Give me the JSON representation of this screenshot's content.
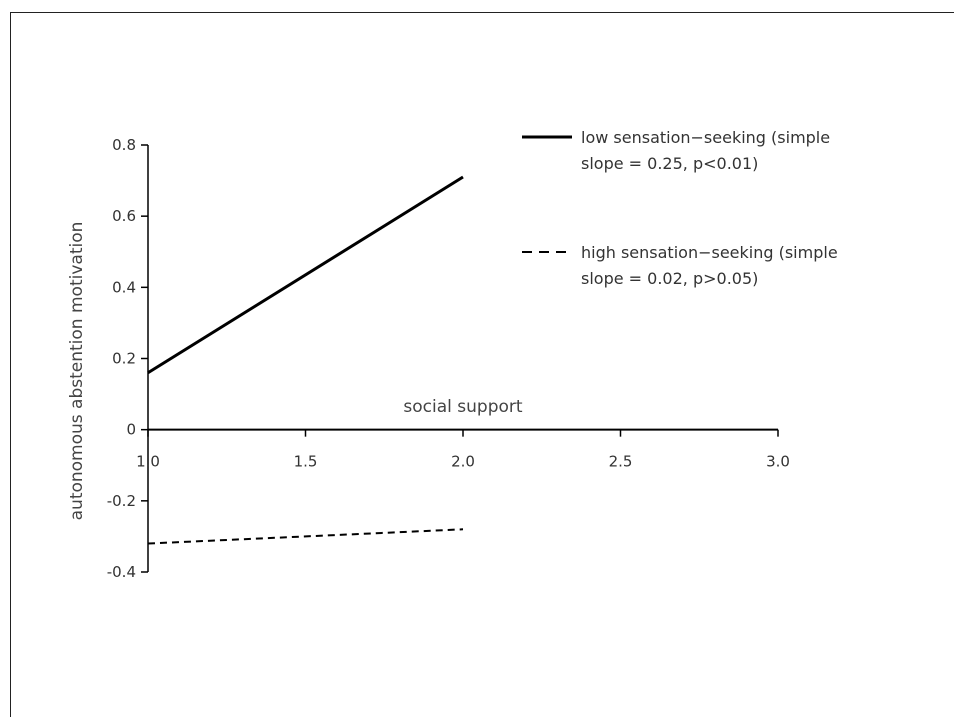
{
  "chart_data": {
    "type": "line",
    "title": "",
    "xlabel": "social support",
    "ylabel": "autonomous abstention motivation",
    "xlim": [
      1.0,
      3.0
    ],
    "ylim": [
      -0.4,
      0.8
    ],
    "x_ticks": [
      "1.0",
      "1.5",
      "2.0",
      "2.5",
      "3.0"
    ],
    "y_ticks": [
      "0.8",
      "0.6",
      "0.4",
      "0.2",
      "0",
      "-0.2",
      "-0.4"
    ],
    "series": [
      {
        "name": "low sensation−seeking (simple slope = 0.25,  p<0.01)",
        "name_lines": [
          "low sensation−seeking (simple",
          "slope = 0.25,  p<0.01)"
        ],
        "style": "solid",
        "x": [
          1.0,
          2.0
        ],
        "y": [
          0.16,
          0.71
        ]
      },
      {
        "name": "high sensation−seeking (simple slope = 0.02,  p>0.05)",
        "name_lines": [
          "high sensation−seeking (simple",
          "slope = 0.02,  p>0.05)"
        ],
        "style": "dashed",
        "x": [
          1.0,
          2.0
        ],
        "y": [
          -0.32,
          -0.28
        ]
      }
    ],
    "grid": false,
    "legend_position": "top-right",
    "colors": {
      "line": "#000000",
      "axis": "#000000",
      "text": "#333333"
    }
  }
}
